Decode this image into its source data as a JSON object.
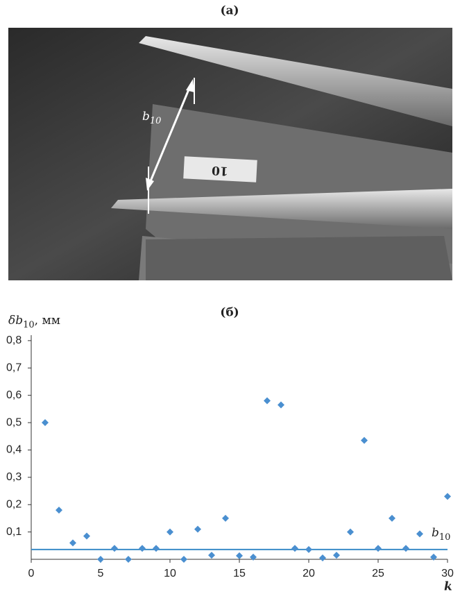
{
  "photo": {
    "caption": "(а)",
    "dimension_label": {
      "main": "b",
      "sub": "10"
    },
    "tag_text": "10"
  },
  "chart_data": {
    "type": "scatter",
    "caption": "(б)",
    "ylabel": {
      "main": "δb",
      "sub": "10",
      "unit": ", мм"
    },
    "xlabel": "k",
    "x": [
      1,
      2,
      3,
      4,
      5,
      6,
      7,
      8,
      9,
      10,
      11,
      12,
      13,
      14,
      15,
      16,
      17,
      18,
      19,
      20,
      21,
      22,
      23,
      24,
      25,
      26,
      27,
      28,
      29,
      30
    ],
    "values": [
      0.5,
      0.18,
      0.06,
      0.085,
      0.0,
      0.04,
      0.0,
      0.04,
      0.04,
      0.1,
      0.0,
      0.11,
      0.015,
      0.15,
      0.013,
      0.008,
      0.58,
      0.565,
      0.04,
      0.036,
      0.005,
      0.015,
      0.1,
      0.435,
      0.04,
      0.15,
      0.04,
      0.093,
      0.008,
      0.23
    ],
    "color": "#4a8fd0",
    "reference_line": {
      "value": 0.036,
      "color": "#3a8cc8",
      "label": {
        "main": "b",
        "sub": "10"
      }
    },
    "xlim": [
      0,
      30
    ],
    "ylim": [
      0,
      0.82
    ],
    "xticks": [
      0,
      5,
      10,
      15,
      20,
      25,
      30
    ],
    "yticks": [
      {
        "value": 0.1,
        "label": "0,1"
      },
      {
        "value": 0.2,
        "label": "0,2"
      },
      {
        "value": 0.3,
        "label": "0,3"
      },
      {
        "value": 0.4,
        "label": "0,4"
      },
      {
        "value": 0.5,
        "label": "0,5"
      },
      {
        "value": 0.6,
        "label": "0,6"
      },
      {
        "value": 0.7,
        "label": "0,7"
      },
      {
        "value": 0.8,
        "label": "0,8"
      }
    ]
  }
}
